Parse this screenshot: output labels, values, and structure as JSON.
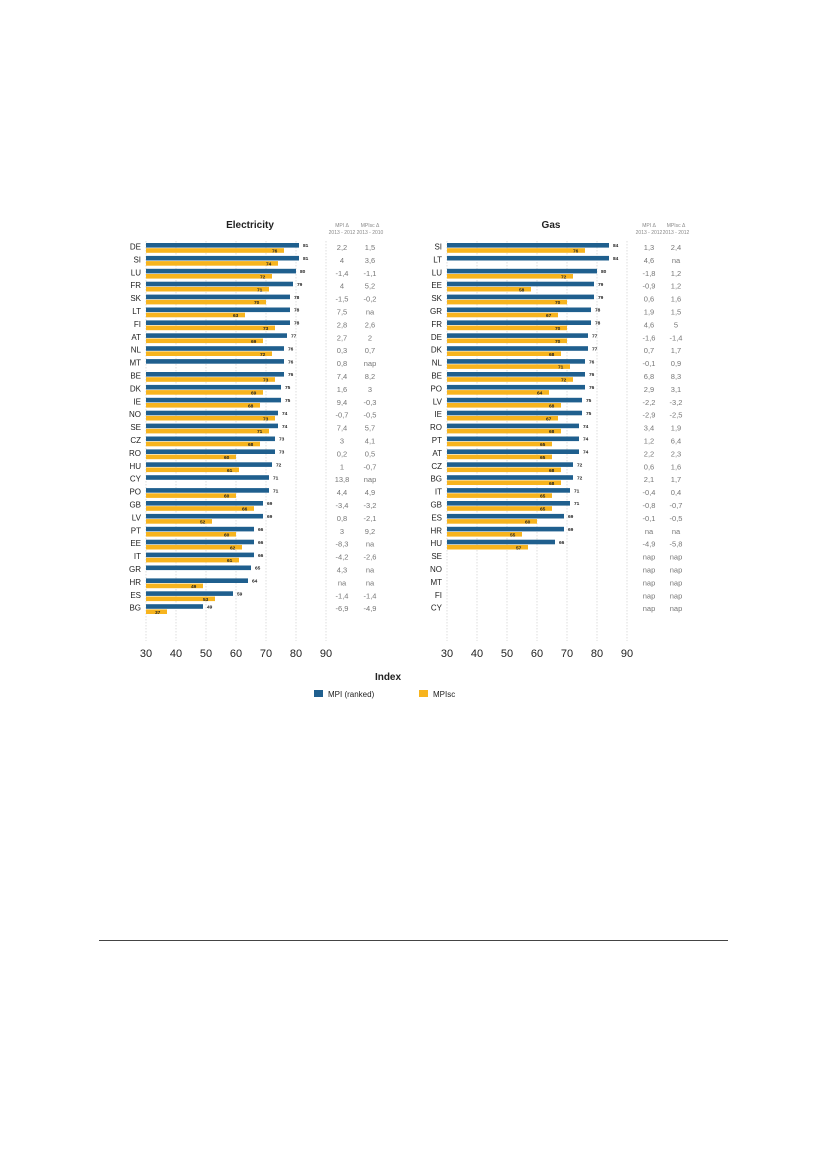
{
  "colors": {
    "mpi": "#1f5f8e",
    "mpisc": "#f7b41e",
    "grid": "#c8c8c8"
  },
  "chart_data": [
    {
      "type": "bar",
      "title": "Electricity",
      "col_headers": {
        "d1_line1": "MPI Δ",
        "d1_line2": "2013 - 2012",
        "d2_line1": "MPIsc Δ",
        "d2_line2": "2013 - 2010"
      },
      "xlabel": "Index",
      "xlim": [
        30,
        90
      ],
      "xticks": [
        30,
        40,
        50,
        60,
        70,
        80,
        90
      ],
      "categories": [
        "DE",
        "SI",
        "LU",
        "FR",
        "SK",
        "LT",
        "FI",
        "AT",
        "NL",
        "MT",
        "BE",
        "DK",
        "IE",
        "NO",
        "SE",
        "CZ",
        "RO",
        "HU",
        "CY",
        "PO",
        "GB",
        "LV",
        "PT",
        "EE",
        "IT",
        "GR",
        "HR",
        "ES",
        "BG"
      ],
      "series": [
        {
          "name": "MPI (ranked)",
          "values": [
            81,
            81,
            80,
            79,
            78,
            78,
            78,
            77,
            76,
            76,
            76,
            75,
            75,
            74,
            74,
            73,
            73,
            72,
            71,
            71,
            69,
            69,
            66,
            66,
            66,
            65,
            64,
            59,
            49
          ]
        },
        {
          "name": "MPIsc",
          "values": [
            76,
            74,
            72,
            71,
            70,
            63,
            73,
            69,
            72,
            null,
            73,
            69,
            68,
            73,
            71,
            68,
            60,
            61,
            null,
            60,
            66,
            52,
            60,
            62,
            61,
            null,
            49,
            53,
            37
          ]
        }
      ],
      "delta_mpi": [
        "2,2",
        "4",
        "-1,4",
        "4",
        "-1,5",
        "7,5",
        "2,8",
        "2,7",
        "0,3",
        "0,8",
        "7,4",
        "1,6",
        "9,4",
        "-0,7",
        "7,4",
        "3",
        "0,2",
        "1",
        "13,8",
        "4,4",
        "-3,4",
        "0,8",
        "3",
        "-8,3",
        "-4,2",
        "4,3",
        "na",
        "-1,4",
        "-6,9"
      ],
      "delta_mpisc": [
        "1,5",
        "3,6",
        "-1,1",
        "5,2",
        "-0,2",
        "na",
        "2,6",
        "2",
        "0,7",
        "nap",
        "8,2",
        "3",
        "-0,3",
        "-0,5",
        "5,7",
        "4,1",
        "0,5",
        "-0,7",
        "nap",
        "4,9",
        "-3,2",
        "-2,1",
        "9,2",
        "na",
        "-2,6",
        "na",
        "na",
        "-1,4",
        "-4,9"
      ]
    },
    {
      "type": "bar",
      "title": "Gas",
      "col_headers": {
        "d1_line1": "MPI Δ",
        "d1_line2": "2013 - 2012",
        "d2_line1": "MPIsc Δ",
        "d2_line2": "2013 - 2012"
      },
      "xlabel": "Index",
      "xlim": [
        30,
        90
      ],
      "xticks": [
        30,
        40,
        50,
        60,
        70,
        80,
        90
      ],
      "categories": [
        "SI",
        "LT",
        "LU",
        "EE",
        "SK",
        "GR",
        "FR",
        "DE",
        "DK",
        "NL",
        "BE",
        "PO",
        "LV",
        "IE",
        "RO",
        "PT",
        "AT",
        "CZ",
        "BG",
        "IT",
        "GB",
        "ES",
        "HR",
        "HU",
        "SE",
        "NO",
        "MT",
        "FI",
        "CY"
      ],
      "series": [
        {
          "name": "MPI (ranked)",
          "values": [
            84,
            84,
            80,
            79,
            79,
            78,
            78,
            77,
            77,
            76,
            76,
            76,
            75,
            75,
            74,
            74,
            74,
            72,
            72,
            71,
            71,
            69,
            69,
            66,
            null,
            null,
            null,
            null,
            null
          ]
        },
        {
          "name": "MPIsc",
          "values": [
            76,
            null,
            72,
            58,
            70,
            67,
            70,
            70,
            68,
            71,
            72,
            64,
            68,
            67,
            68,
            65,
            65,
            68,
            68,
            65,
            65,
            60,
            55,
            57,
            null,
            null,
            null,
            null,
            null
          ]
        }
      ],
      "delta_mpi": [
        "1,3",
        "4,6",
        "-1,8",
        "-0,9",
        "0,6",
        "1,9",
        "4,6",
        "-1,6",
        "0,7",
        "-0,1",
        "6,8",
        "2,9",
        "-2,2",
        "-2,9",
        "3,4",
        "1,2",
        "2,2",
        "0,6",
        "2,1",
        "-0,4",
        "-0,8",
        "-0,1",
        "na",
        "-4,9",
        "nap",
        "nap",
        "nap",
        "nap",
        "nap"
      ],
      "delta_mpisc": [
        "2,4",
        "na",
        "1,2",
        "1,2",
        "1,6",
        "1,5",
        "5",
        "-1,4",
        "1,7",
        "0,9",
        "8,3",
        "3,1",
        "-3,2",
        "-2,5",
        "1,9",
        "6,4",
        "2,3",
        "1,6",
        "1,7",
        "0,4",
        "-0,7",
        "-0,5",
        "na",
        "-5,8",
        "nap",
        "nap",
        "nap",
        "nap",
        "nap"
      ]
    }
  ],
  "legend": {
    "mpi_label": "MPI (ranked)",
    "mpisc_label": "MPIsc"
  }
}
